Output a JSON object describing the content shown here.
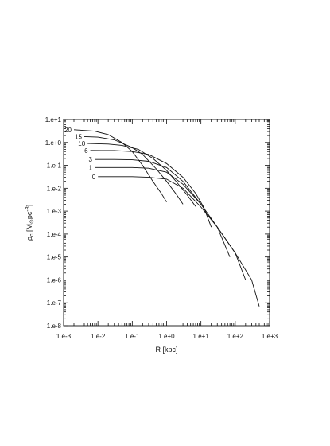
{
  "chart_data": {
    "type": "line",
    "x_scale": "log",
    "y_scale": "log",
    "xlim": [
      0.001,
      1000
    ],
    "ylim": [
      1e-08,
      10
    ],
    "xlabel": "R [kpc]",
    "ylabel": {
      "prefix": "ρ",
      "subscript": "c",
      "unit_open": " [M",
      "sun_symbol": "⊙",
      "unit_mid": "pc",
      "unit_sup": "-3",
      "unit_close": "]"
    },
    "x_ticks": [
      "1.e-3",
      "1.e-2",
      "1.e-1",
      "1.e+0",
      "1.e+1",
      "1.e+2",
      "1.e+3"
    ],
    "y_ticks": [
      "1.e+1",
      "1.e+0",
      "1.e-1",
      "1.e-2",
      "1.e-3",
      "1.e-4",
      "1.e-5",
      "1.e-6",
      "1.e-7",
      "1.e-8"
    ],
    "grid": false,
    "series": [
      {
        "name": "20",
        "points": [
          [
            0.002,
            3.6
          ],
          [
            0.008,
            3.1
          ],
          [
            0.02,
            2.2
          ],
          [
            0.05,
            1.0
          ],
          [
            0.1,
            0.4
          ],
          [
            0.2,
            0.1
          ],
          [
            0.4,
            0.02
          ],
          [
            0.7,
            0.006
          ],
          [
            1.0,
            0.0025
          ]
        ]
      },
      {
        "name": "15",
        "points": [
          [
            0.004,
            1.8
          ],
          [
            0.01,
            1.7
          ],
          [
            0.03,
            1.3
          ],
          [
            0.1,
            0.6
          ],
          [
            0.2,
            0.3
          ],
          [
            0.5,
            0.07
          ],
          [
            1.0,
            0.02
          ],
          [
            2.0,
            0.005
          ],
          [
            3.0,
            0.002
          ]
        ]
      },
      {
        "name": "10",
        "points": [
          [
            0.005,
            0.9
          ],
          [
            0.02,
            0.85
          ],
          [
            0.05,
            0.75
          ],
          [
            0.15,
            0.5
          ],
          [
            0.4,
            0.2
          ],
          [
            1.0,
            0.06
          ],
          [
            2.0,
            0.018
          ],
          [
            4.0,
            0.005
          ],
          [
            7.0,
            0.0016
          ]
        ]
      },
      {
        "name": "6",
        "points": [
          [
            0.006,
            0.45
          ],
          [
            0.03,
            0.44
          ],
          [
            0.1,
            0.4
          ],
          [
            0.3,
            0.3
          ],
          [
            1.0,
            0.12
          ],
          [
            3.0,
            0.03
          ],
          [
            7.0,
            0.006
          ],
          [
            12.0,
            0.0015
          ],
          [
            20.0,
            0.0002
          ]
        ]
      },
      {
        "name": "3",
        "points": [
          [
            0.008,
            0.18
          ],
          [
            0.03,
            0.18
          ],
          [
            0.1,
            0.175
          ],
          [
            0.3,
            0.15
          ],
          [
            1.0,
            0.08
          ],
          [
            3.0,
            0.02
          ],
          [
            10.0,
            0.002
          ],
          [
            30.0,
            0.0002
          ],
          [
            70.0,
            1e-05
          ]
        ]
      },
      {
        "name": "1",
        "points": [
          [
            0.008,
            0.08
          ],
          [
            0.03,
            0.08
          ],
          [
            0.1,
            0.08
          ],
          [
            0.3,
            0.075
          ],
          [
            1.0,
            0.05
          ],
          [
            3.0,
            0.015
          ],
          [
            10.0,
            0.002
          ],
          [
            30.0,
            0.0002
          ],
          [
            100.0,
            1.5e-05
          ],
          [
            200.0,
            1e-06
          ]
        ]
      },
      {
        "name": "0",
        "points": [
          [
            0.01,
            0.032
          ],
          [
            0.03,
            0.032
          ],
          [
            0.1,
            0.032
          ],
          [
            0.3,
            0.03
          ],
          [
            1.0,
            0.025
          ],
          [
            3.0,
            0.01
          ],
          [
            10.0,
            0.0015
          ],
          [
            30.0,
            0.0002
          ],
          [
            100.0,
            1.5e-05
          ],
          [
            300.0,
            1e-06
          ],
          [
            500.0,
            7e-08
          ]
        ]
      }
    ]
  }
}
